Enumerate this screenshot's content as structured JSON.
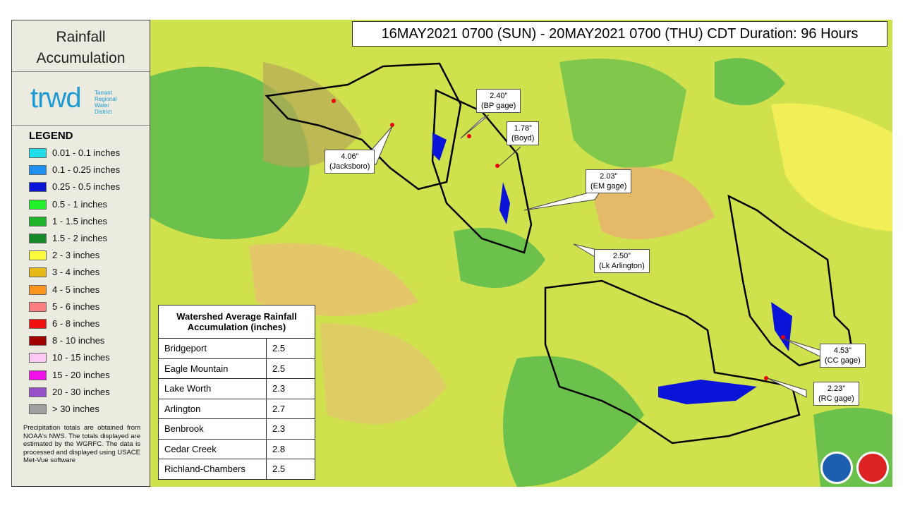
{
  "panel": {
    "title_line1": "Rainfall",
    "title_line2": "Accumulation",
    "logo": "trwd",
    "logo_sub": [
      "Tarrant",
      "Regional",
      "Water",
      "District"
    ],
    "legend_title": "LEGEND",
    "legend": [
      {
        "label": "0.01 - 0.1 inches",
        "color": "#1ee0e8"
      },
      {
        "label": "0.1 - 0.25 inches",
        "color": "#1e8ff0"
      },
      {
        "label": "0.25 - 0.5 inches",
        "color": "#0a14d8"
      },
      {
        "label": "0.5 - 1 inches",
        "color": "#22f028"
      },
      {
        "label": "1 - 1.5 inches",
        "color": "#20b42a"
      },
      {
        "label": "1.5 - 2 inches",
        "color": "#168a28"
      },
      {
        "label": "2 - 3 inches",
        "color": "#fcfc3c"
      },
      {
        "label": "3 - 4 inches",
        "color": "#e8b818"
      },
      {
        "label": "4 - 5 inches",
        "color": "#fc9420"
      },
      {
        "label": "5 - 6 inches",
        "color": "#fc8080"
      },
      {
        "label": "6 - 8 inches",
        "color": "#f01010"
      },
      {
        "label": "8 - 10 inches",
        "color": "#a00000"
      },
      {
        "label": "10 - 15 inches",
        "color": "#fcc8f4"
      },
      {
        "label": "15 - 20 inches",
        "color": "#f010e8"
      },
      {
        "label": "20 - 30 inches",
        "color": "#9850c8"
      },
      {
        "label": "> 30 inches",
        "color": "#a0a0a0"
      }
    ],
    "note": "Precipitation totals are obtained from NOAA's NWS. The totals displayed are estimated by the WGRFC. The data is processed and displayed using USACE Met-Vue software"
  },
  "header": "16MAY2021 0700 (SUN) - 20MAY2021 0700 (THU) CDT Duration: 96 Hours",
  "callouts": [
    {
      "value": "2.40”",
      "label": "(BP gage)"
    },
    {
      "value": "1.78”",
      "label": "(Boyd)"
    },
    {
      "value": "4.06”",
      "label": "(Jacksboro)"
    },
    {
      "value": "2.03”",
      "label": "(EM gage)"
    },
    {
      "value": "2.50”",
      "label": "(Lk Arlington)"
    },
    {
      "value": "4.53”",
      "label": "(CC gage)"
    },
    {
      "value": "2.23”",
      "label": "(RC gage)"
    }
  ],
  "table": {
    "title": "Watershed Average Rainfall Accumulation (inches)",
    "rows": [
      [
        "Bridgeport",
        2.5
      ],
      [
        "Eagle Mountain",
        2.5
      ],
      [
        "Lake Worth",
        2.3
      ],
      [
        "Arlington",
        2.7
      ],
      [
        "Benbrook",
        2.3
      ],
      [
        "Cedar Creek",
        2.8
      ],
      [
        "Richland-Chambers",
        2.5
      ]
    ]
  }
}
